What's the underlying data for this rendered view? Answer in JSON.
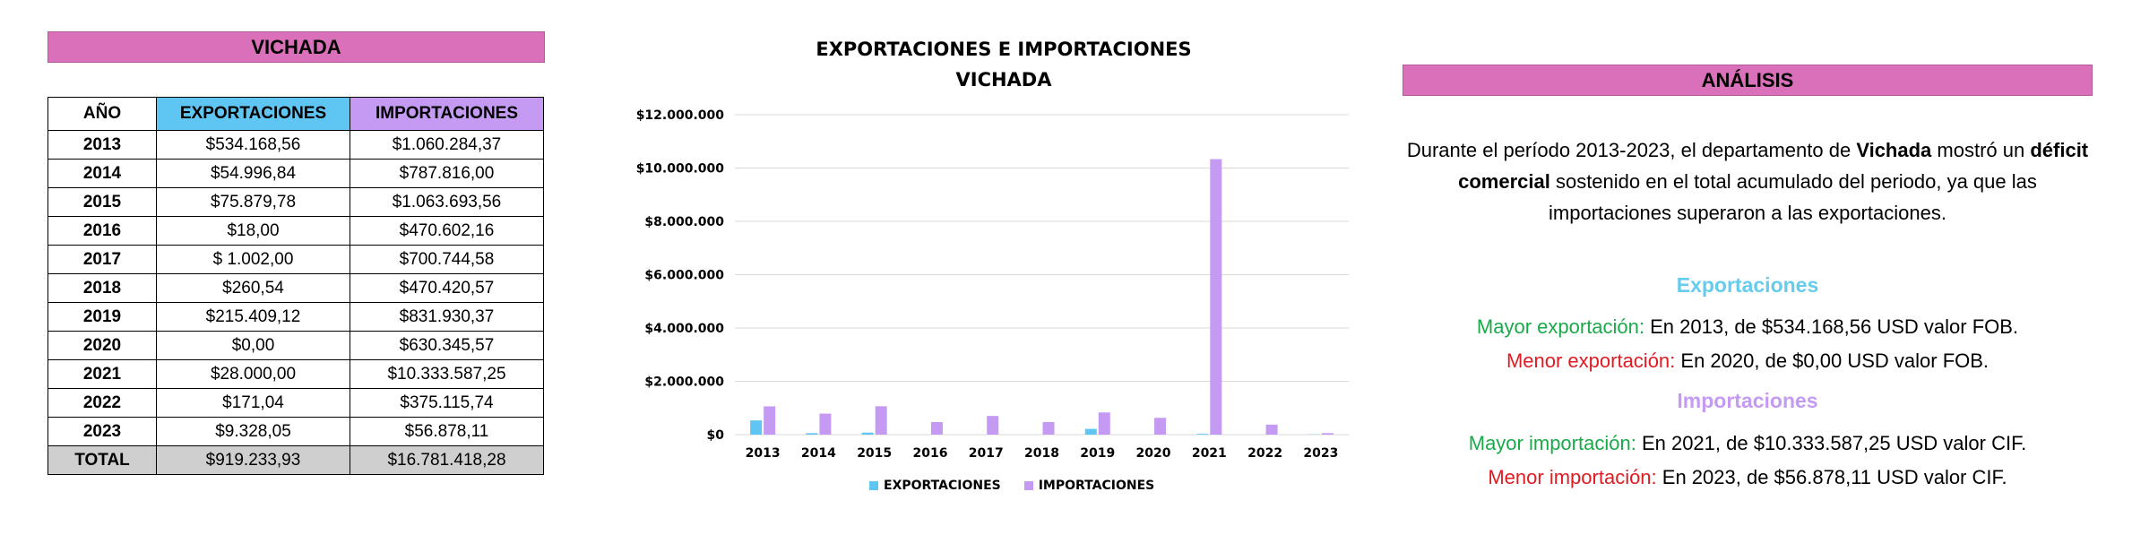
{
  "left": {
    "title": "VICHADA",
    "headers": [
      "AÑO",
      "EXPORTACIONES",
      "IMPORTACIONES"
    ],
    "rows": [
      [
        "2013",
        "$534.168,56",
        "$1.060.284,37"
      ],
      [
        "2014",
        "$54.996,84",
        "$787.816,00"
      ],
      [
        "2015",
        "$75.879,78",
        "$1.063.693,56"
      ],
      [
        "2016",
        "$18,00",
        "$470.602,16"
      ],
      [
        "2017",
        "$ 1.002,00",
        "$700.744,58"
      ],
      [
        "2018",
        "$260,54",
        "$470.420,57"
      ],
      [
        "2019",
        "$215.409,12",
        "$831.930,37"
      ],
      [
        "2020",
        "$0,00",
        "$630.345,57"
      ],
      [
        "2021",
        "$28.000,00",
        "$10.333.587,25"
      ],
      [
        "2022",
        "$171,04",
        "$375.115,74"
      ],
      [
        "2023",
        "$9.328,05",
        "$56.878,11"
      ]
    ],
    "total": [
      "TOTAL",
      "$919.233,93",
      "$16.781.418,28"
    ]
  },
  "chart_data": {
    "type": "bar",
    "title_line1": "EXPORTACIONES E IMPORTACIONES",
    "title_line2": "VICHADA",
    "categories": [
      "2013",
      "2014",
      "2015",
      "2016",
      "2017",
      "2018",
      "2019",
      "2020",
      "2021",
      "2022",
      "2023"
    ],
    "series": [
      {
        "name": "EXPORTACIONES",
        "color": "#5fc5f2",
        "values": [
          534168.56,
          54996.84,
          75879.78,
          18.0,
          1002.0,
          260.54,
          215409.12,
          0.0,
          28000.0,
          171.04,
          9328.05
        ]
      },
      {
        "name": "IMPORTACIONES",
        "color": "#c49af2",
        "values": [
          1060284.37,
          787816.0,
          1063693.56,
          470602.16,
          700744.58,
          470420.57,
          831930.37,
          630345.57,
          10333587.25,
          375115.74,
          56878.11
        ]
      }
    ],
    "ylim": [
      0,
      12000000
    ],
    "yticks": [
      {
        "value": 0,
        "label": "$0"
      },
      {
        "value": 2000000,
        "label": "$2.000.000"
      },
      {
        "value": 4000000,
        "label": "$4.000.000"
      },
      {
        "value": 6000000,
        "label": "$6.000.000"
      },
      {
        "value": 8000000,
        "label": "$8.000.000"
      },
      {
        "value": 10000000,
        "label": "$10.000.000"
      },
      {
        "value": 12000000,
        "label": "$12.000.000"
      }
    ],
    "grid": true,
    "legend": "bottom"
  },
  "right": {
    "title": "ANÁLISIS",
    "para": {
      "p1": "Durante el período 2013-2023, el departamento de ",
      "b1": "Vichada",
      "p2": " mostró un ",
      "b2": "déficit comercial",
      "p3": " sostenido en el total acumulado del periodo, ya que las importaciones superaron a las exportaciones."
    },
    "exp_head": "Exportaciones",
    "exp_max_label": "Mayor exportación:",
    "exp_max_text": " En 2013, de $534.168,56 USD valor FOB.",
    "exp_min_label": "Menor exportación:",
    "exp_min_text": " En 2020, de $0,00 USD valor FOB.",
    "imp_head": "Importaciones",
    "imp_max_label": "Mayor importación:",
    "imp_max_text": " En 2021, de $10.333.587,25 USD valor CIF.",
    "imp_min_label": "Menor importación:",
    "imp_min_text": " En 2023, de $56.878,11 USD valor CIF."
  }
}
